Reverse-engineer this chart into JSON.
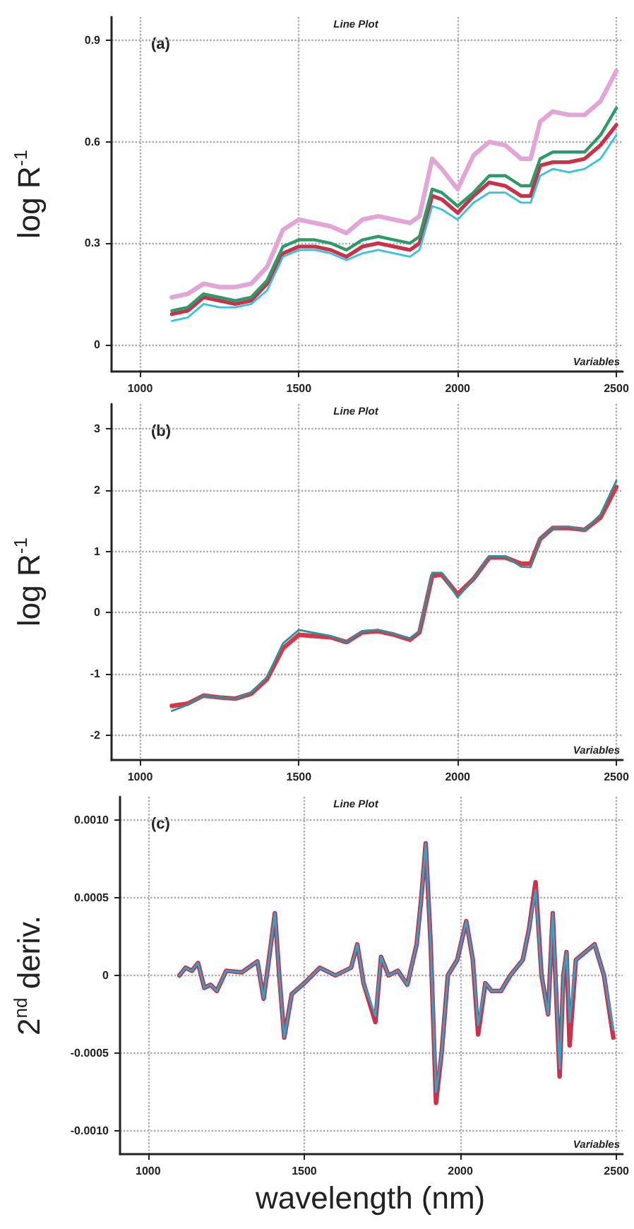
{
  "chart_data": [
    {
      "type": "line",
      "title": "Line Plot",
      "xlabel": "Variables",
      "ylabel": "log R$^{-1}$",
      "annotations": [
        "(a)"
      ],
      "grid": true,
      "marker": "none",
      "line_style": "solid",
      "xlim": [
        910,
        2520
      ],
      "xticks": [
        1000,
        1500,
        2000,
        2500
      ],
      "ylim": [
        -0.08,
        0.97
      ],
      "yticks": [
        0,
        0.3,
        0.6,
        0.9
      ],
      "x": [
        1100,
        1150,
        1200,
        1250,
        1300,
        1350,
        1400,
        1450,
        1500,
        1550,
        1600,
        1650,
        1700,
        1750,
        1800,
        1850,
        1880,
        1920,
        1950,
        2000,
        2050,
        2100,
        2150,
        2200,
        2230,
        2260,
        2300,
        2350,
        2400,
        2450,
        2500
      ],
      "series": [
        {
          "color": "#e2a6d6",
          "values": [
            0.14,
            0.15,
            0.18,
            0.17,
            0.17,
            0.18,
            0.23,
            0.34,
            0.37,
            0.36,
            0.35,
            0.33,
            0.37,
            0.38,
            0.37,
            0.36,
            0.38,
            0.55,
            0.52,
            0.46,
            0.56,
            0.6,
            0.59,
            0.55,
            0.55,
            0.66,
            0.69,
            0.68,
            0.68,
            0.72,
            0.81
          ]
        },
        {
          "color": "#c8324a",
          "values": [
            0.09,
            0.1,
            0.14,
            0.13,
            0.12,
            0.13,
            0.18,
            0.27,
            0.29,
            0.29,
            0.28,
            0.26,
            0.29,
            0.3,
            0.29,
            0.28,
            0.3,
            0.44,
            0.43,
            0.39,
            0.44,
            0.48,
            0.47,
            0.44,
            0.44,
            0.53,
            0.54,
            0.54,
            0.55,
            0.59,
            0.65
          ]
        },
        {
          "color": "#2e9a6a",
          "values": [
            0.1,
            0.11,
            0.15,
            0.14,
            0.13,
            0.14,
            0.19,
            0.29,
            0.31,
            0.31,
            0.3,
            0.28,
            0.31,
            0.32,
            0.31,
            0.3,
            0.32,
            0.46,
            0.45,
            0.41,
            0.45,
            0.5,
            0.5,
            0.47,
            0.47,
            0.55,
            0.57,
            0.57,
            0.57,
            0.62,
            0.7
          ]
        },
        {
          "color": "#33c3e0",
          "values": [
            0.07,
            0.08,
            0.12,
            0.11,
            0.11,
            0.12,
            0.16,
            0.26,
            0.28,
            0.28,
            0.27,
            0.25,
            0.27,
            0.28,
            0.27,
            0.26,
            0.28,
            0.41,
            0.4,
            0.37,
            0.42,
            0.45,
            0.45,
            0.42,
            0.42,
            0.5,
            0.52,
            0.51,
            0.52,
            0.55,
            0.62
          ]
        }
      ]
    },
    {
      "type": "line",
      "title": "Line Plot",
      "xlabel": "Variables",
      "ylabel": "log R$^{-1}$",
      "annotations": [
        "(b)"
      ],
      "grid": true,
      "marker": "none",
      "line_style": "solid",
      "xlim": [
        910,
        2520
      ],
      "xticks": [
        1000,
        1500,
        2000,
        2500
      ],
      "ylim": [
        -2.4,
        3.4
      ],
      "yticks": [
        -2,
        -1,
        0,
        1,
        2,
        3
      ],
      "x": [
        1100,
        1150,
        1200,
        1250,
        1300,
        1350,
        1400,
        1450,
        1500,
        1550,
        1600,
        1650,
        1700,
        1750,
        1800,
        1850,
        1880,
        1920,
        1950,
        2000,
        2050,
        2100,
        2150,
        2200,
        2230,
        2260,
        2300,
        2350,
        2400,
        2450,
        2500
      ],
      "series": [
        {
          "color": "#d23a4a",
          "values": [
            -1.52,
            -1.48,
            -1.35,
            -1.38,
            -1.4,
            -1.32,
            -1.08,
            -0.58,
            -0.36,
            -0.38,
            -0.4,
            -0.48,
            -0.32,
            -0.3,
            -0.36,
            -0.44,
            -0.32,
            0.6,
            0.62,
            0.3,
            0.55,
            0.9,
            0.9,
            0.8,
            0.8,
            1.2,
            1.38,
            1.38,
            1.35,
            1.55,
            2.05
          ]
        },
        {
          "color": "#2f8f9a",
          "values": [
            -1.6,
            -1.5,
            -1.35,
            -1.38,
            -1.4,
            -1.3,
            -1.05,
            -0.5,
            -0.28,
            -0.33,
            -0.38,
            -0.48,
            -0.3,
            -0.28,
            -0.35,
            -0.42,
            -0.3,
            0.65,
            0.65,
            0.25,
            0.55,
            0.92,
            0.92,
            0.75,
            0.74,
            1.2,
            1.38,
            1.4,
            1.35,
            1.6,
            2.15
          ]
        }
      ]
    },
    {
      "type": "line",
      "title": "Line Plot",
      "xlabel": "Variables",
      "ylabel": "2$^{nd}$ deriv.",
      "annotations": [
        "(c)",
        "wavelength (nm)"
      ],
      "grid": true,
      "marker": "none",
      "line_style": "solid",
      "xlim": [
        910,
        2520
      ],
      "xticks": [
        1000,
        1500,
        2000,
        2500
      ],
      "ylim": [
        -0.00115,
        0.00115
      ],
      "yticks": [
        {
          "value": -0.001,
          "label": "-0.0010"
        },
        {
          "value": -0.0005,
          "label": "-0.0005"
        },
        0,
        {
          "value": 0.0005,
          "label": "0.0005"
        },
        {
          "value": 0.001,
          "label": "0.0010"
        }
      ],
      "x": [
        1100,
        1120,
        1140,
        1160,
        1180,
        1200,
        1220,
        1250,
        1300,
        1350,
        1370,
        1390,
        1406,
        1420,
        1436,
        1460,
        1500,
        1550,
        1600,
        1650,
        1670,
        1690,
        1728,
        1746,
        1770,
        1800,
        1830,
        1860,
        1875,
        1889,
        1905,
        1922,
        1940,
        1960,
        1990,
        2019,
        2040,
        2057,
        2080,
        2100,
        2130,
        2160,
        2200,
        2220,
        2241,
        2260,
        2281,
        2296,
        2318,
        2330,
        2340,
        2350,
        2370,
        2400,
        2430,
        2460,
        2490
      ],
      "series": [
        {
          "color": "#c8324a",
          "values": [
            0,
            5e-05,
            3e-05,
            8e-05,
            -8e-05,
            -6e-05,
            -0.0001,
            3e-05,
            2e-05,
            9e-05,
            -0.00015,
            0.00015,
            0.0004,
            0,
            -0.0004,
            -0.00012,
            -5e-05,
            5e-05,
            0,
            5e-05,
            0.0002,
            -5e-05,
            -0.0003,
            0.00012,
            0,
            3e-05,
            -6e-05,
            0.0002,
            0.0005,
            0.00085,
            0.0002,
            -0.00082,
            -0.0005,
            0,
            0.0001,
            0.00035,
            0.0001,
            -0.00038,
            -5e-05,
            -0.0001,
            -0.0001,
            0,
            0.0001,
            0.0003,
            0.0006,
            0,
            -0.00025,
            0.0004,
            -0.00065,
            0,
            0.00015,
            -0.00045,
            0.0001,
            0.00015,
            0.0002,
            0,
            -0.0004
          ]
        },
        {
          "color": "#2aa8c8",
          "values": [
            0,
            5e-05,
            3e-05,
            8e-05,
            -8e-05,
            -6e-05,
            -0.0001,
            3e-05,
            2e-05,
            9e-05,
            -0.00015,
            0.00015,
            0.0004,
            0,
            -0.0004,
            -0.00012,
            -5e-05,
            5e-05,
            0,
            5e-05,
            0.0002,
            -5e-05,
            -0.00026,
            0.00012,
            0,
            3e-05,
            -6e-05,
            0.0002,
            0.0005,
            0.00085,
            0.0002,
            -0.00075,
            -0.0005,
            0,
            0.0001,
            0.00035,
            0.0001,
            -0.00032,
            -5e-05,
            -0.0001,
            -0.0001,
            0,
            0.0001,
            0.0003,
            0.00055,
            0,
            -0.00025,
            0.0004,
            -0.0006,
            0,
            0.00015,
            -0.0003,
            0.0001,
            0.00015,
            0.0002,
            0,
            -0.00035
          ]
        }
      ]
    }
  ]
}
